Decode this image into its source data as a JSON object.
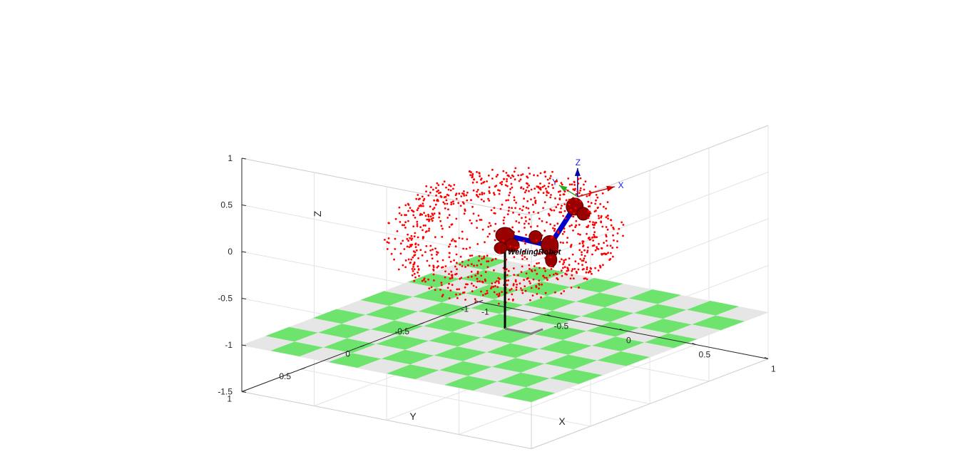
{
  "chart_data": {
    "type": "scatter",
    "projection": "3d",
    "title": "",
    "xlabel": "X",
    "ylabel": "Y",
    "zlabel": "Z",
    "xlim": [
      -1,
      1
    ],
    "ylim": [
      -1,
      1
    ],
    "zlim": [
      -1.5,
      1
    ],
    "xticks": [
      "-1",
      "-0.5",
      "0",
      "0.5",
      "1"
    ],
    "yticks": [
      "-1",
      "-0.5",
      "0",
      "0.5",
      "1"
    ],
    "zticks": [
      "-1.5",
      "-1",
      "-0.5",
      "0",
      "0.5",
      "1"
    ],
    "grid": true,
    "series": [
      {
        "marker_color": "#ff0000",
        "point_count": 1000,
        "distribution": "sphere",
        "center": [
          0,
          0,
          0
        ],
        "radius": 0.65
      }
    ],
    "floor": {
      "z": -1,
      "pattern": "checkerboard",
      "colors": [
        "#6ee36e",
        "#e6e6e6"
      ]
    },
    "robot": {
      "name": "WeldingRobot",
      "link_color": "#990000",
      "joint_axis_color": "#0000cc",
      "base_color": "#000000",
      "end_effector_frame": [
        "X",
        "Y",
        "Z"
      ]
    }
  }
}
